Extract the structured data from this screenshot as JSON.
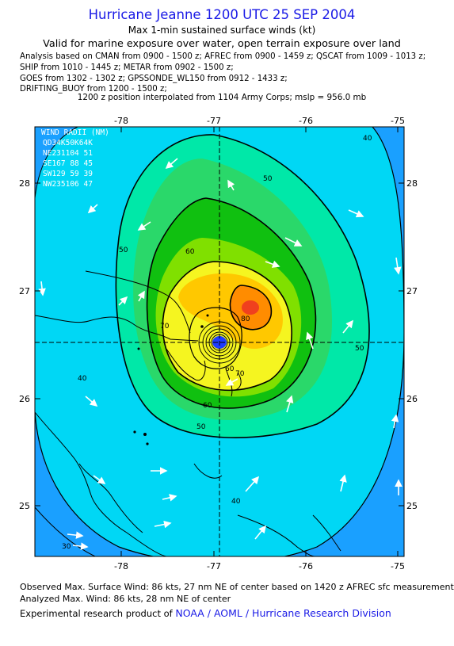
{
  "header": {
    "title": "Hurricane Jeanne 1200 UTC 25 SEP 2004",
    "subtitle": "Max 1-min sustained surface winds (kt)",
    "valid": "Valid for marine exposure over water, open terrain exposure over land",
    "analysis_lines": [
      "Analysis based on  CMAN from 0900 - 1500 z;  AFREC from 0900 - 1459 z;  QSCAT from 1009 - 1013 z;",
      "SHIP from 1010 - 1445 z;  METAR from 0902 - 1500 z;",
      "GOES from 1302 - 1302 z;  GPSSONDE_WL150 from 0912 - 1433 z;",
      "DRIFTING_BUOY from 1200 - 1500 z;"
    ],
    "interp": "1200 z position interpolated from 1104 Army Corps; mslp = 956.0 mb"
  },
  "map": {
    "lon_ticks": [
      "-78",
      "-77",
      "-76",
      "-75"
    ],
    "lat_ticks": [
      "28",
      "27",
      "26",
      "25"
    ],
    "wind_radii": {
      "title": "WIND RADII (NM)",
      "header": "QD34K50K64K",
      "rows": [
        "NE231104 51",
        "SE167 88 45",
        "SW129 59 39",
        "NW235106 47"
      ]
    },
    "contour_labels": [
      "30",
      "40",
      "40",
      "40",
      "50",
      "50",
      "50",
      "50",
      "60",
      "60",
      "70",
      "70",
      "80",
      "60"
    ],
    "colors": {
      "c30": "#1aa0ff",
      "c40": "#00d7f5",
      "c50": "#00e8a8",
      "c55": "#2ad86a",
      "c60": "#10c010",
      "c65": "#80e000",
      "c70": "#f5f520",
      "c75": "#ffc800",
      "c80": "#ff8c00",
      "c85": "#f0401e",
      "land": "#000000"
    }
  },
  "footer": {
    "observed": "Observed Max. Surface Wind: 86 kts, 27 nm NE of center based on 1420 z AFREC sfc measurement",
    "analyzed": "Analyzed Max. Wind: 86 kts, 28 nm NE of center",
    "research_prefix": "Experimental research product of ",
    "research_org": "NOAA / AOML / Hurricane Research Division"
  }
}
